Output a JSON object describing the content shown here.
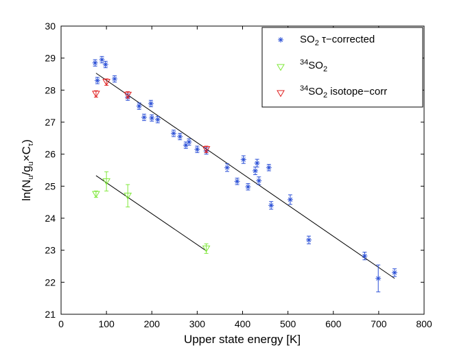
{
  "chart_data": {
    "type": "scatter",
    "title": "",
    "xlabel": "Upper state energy [K]",
    "ylabel_parts": {
      "pre": "ln(N",
      "sub1": "u",
      "mid": "/g",
      "sub2": "u",
      "times": "×C",
      "sub3": "τ",
      "post": ")"
    },
    "xlim": [
      0,
      800
    ],
    "ylim": [
      21,
      30
    ],
    "xticks": [
      0,
      100,
      200,
      300,
      400,
      500,
      600,
      700,
      800
    ],
    "yticks": [
      21,
      22,
      23,
      24,
      25,
      26,
      27,
      28,
      29,
      30
    ],
    "legend_location": "top-right",
    "colors": {
      "so2": "#2a4fd6",
      "so34": "#7fe83a",
      "corr": "#e02020",
      "fit": "#000000"
    },
    "legend": [
      {
        "key": "so2",
        "parts": {
          "base": "SO",
          "sub": "2",
          "rest": " τ−corrected"
        }
      },
      {
        "key": "so34",
        "parts": {
          "sup": "34",
          "base": "SO",
          "sub": "2",
          "rest": ""
        }
      },
      {
        "key": "corr",
        "parts": {
          "sup": "34",
          "base": "SO",
          "sub": "2",
          "rest": "  isotope−corr"
        }
      }
    ],
    "series": [
      {
        "name": "SO2 τ-corrected",
        "key": "so2",
        "marker": "asterisk",
        "points": [
          {
            "x": 75,
            "y": 28.85,
            "err": 0.1
          },
          {
            "x": 80,
            "y": 28.3,
            "err": 0.1
          },
          {
            "x": 90,
            "y": 28.95,
            "err": 0.1
          },
          {
            "x": 98,
            "y": 28.8,
            "err": 0.1
          },
          {
            "x": 118,
            "y": 28.35,
            "err": 0.1
          },
          {
            "x": 147,
            "y": 27.78,
            "err": 0.1
          },
          {
            "x": 172,
            "y": 27.5,
            "err": 0.1
          },
          {
            "x": 183,
            "y": 27.15,
            "err": 0.1
          },
          {
            "x": 198,
            "y": 27.58,
            "err": 0.1
          },
          {
            "x": 200,
            "y": 27.13,
            "err": 0.1
          },
          {
            "x": 213,
            "y": 27.08,
            "err": 0.1
          },
          {
            "x": 248,
            "y": 26.65,
            "err": 0.1
          },
          {
            "x": 262,
            "y": 26.55,
            "err": 0.1
          },
          {
            "x": 275,
            "y": 26.28,
            "err": 0.1
          },
          {
            "x": 282,
            "y": 26.38,
            "err": 0.1
          },
          {
            "x": 300,
            "y": 26.15,
            "err": 0.1
          },
          {
            "x": 320,
            "y": 26.1,
            "err": 0.1
          },
          {
            "x": 366,
            "y": 25.58,
            "err": 0.12
          },
          {
            "x": 388,
            "y": 25.15,
            "err": 0.1
          },
          {
            "x": 402,
            "y": 25.83,
            "err": 0.12
          },
          {
            "x": 412,
            "y": 24.98,
            "err": 0.1
          },
          {
            "x": 428,
            "y": 25.48,
            "err": 0.12
          },
          {
            "x": 432,
            "y": 25.72,
            "err": 0.12
          },
          {
            "x": 436,
            "y": 25.17,
            "err": 0.12
          },
          {
            "x": 458,
            "y": 25.58,
            "err": 0.1
          },
          {
            "x": 463,
            "y": 24.4,
            "err": 0.12
          },
          {
            "x": 505,
            "y": 24.58,
            "err": 0.15
          },
          {
            "x": 546,
            "y": 23.32,
            "err": 0.12
          },
          {
            "x": 669,
            "y": 22.82,
            "err": 0.12
          },
          {
            "x": 699,
            "y": 22.12,
            "err": 0.42
          },
          {
            "x": 735,
            "y": 22.3,
            "err": 0.12
          }
        ]
      },
      {
        "name": "34SO2",
        "key": "so34",
        "marker": "triangle",
        "points": [
          {
            "x": 77,
            "y": 24.75,
            "err": 0.1
          },
          {
            "x": 100,
            "y": 25.15,
            "err": 0.3
          },
          {
            "x": 147,
            "y": 24.7,
            "err": 0.35
          },
          {
            "x": 320,
            "y": 23.05,
            "err": 0.15
          }
        ]
      },
      {
        "name": "34SO2 isotope-corr",
        "key": "corr",
        "marker": "triangle",
        "points": [
          {
            "x": 77,
            "y": 27.88,
            "err": 0.1
          },
          {
            "x": 100,
            "y": 28.25,
            "err": 0.1
          },
          {
            "x": 147,
            "y": 27.85,
            "err": 0.1
          },
          {
            "x": 320,
            "y": 26.15,
            "err": 0.1
          }
        ]
      }
    ],
    "fits": [
      {
        "name": "SO2 fit",
        "x": [
          77,
          735
        ],
        "y": [
          28.53,
          22.12
        ]
      },
      {
        "name": "34SO2 fit",
        "x": [
          77,
          320
        ],
        "y": [
          25.33,
          22.98
        ]
      }
    ]
  }
}
